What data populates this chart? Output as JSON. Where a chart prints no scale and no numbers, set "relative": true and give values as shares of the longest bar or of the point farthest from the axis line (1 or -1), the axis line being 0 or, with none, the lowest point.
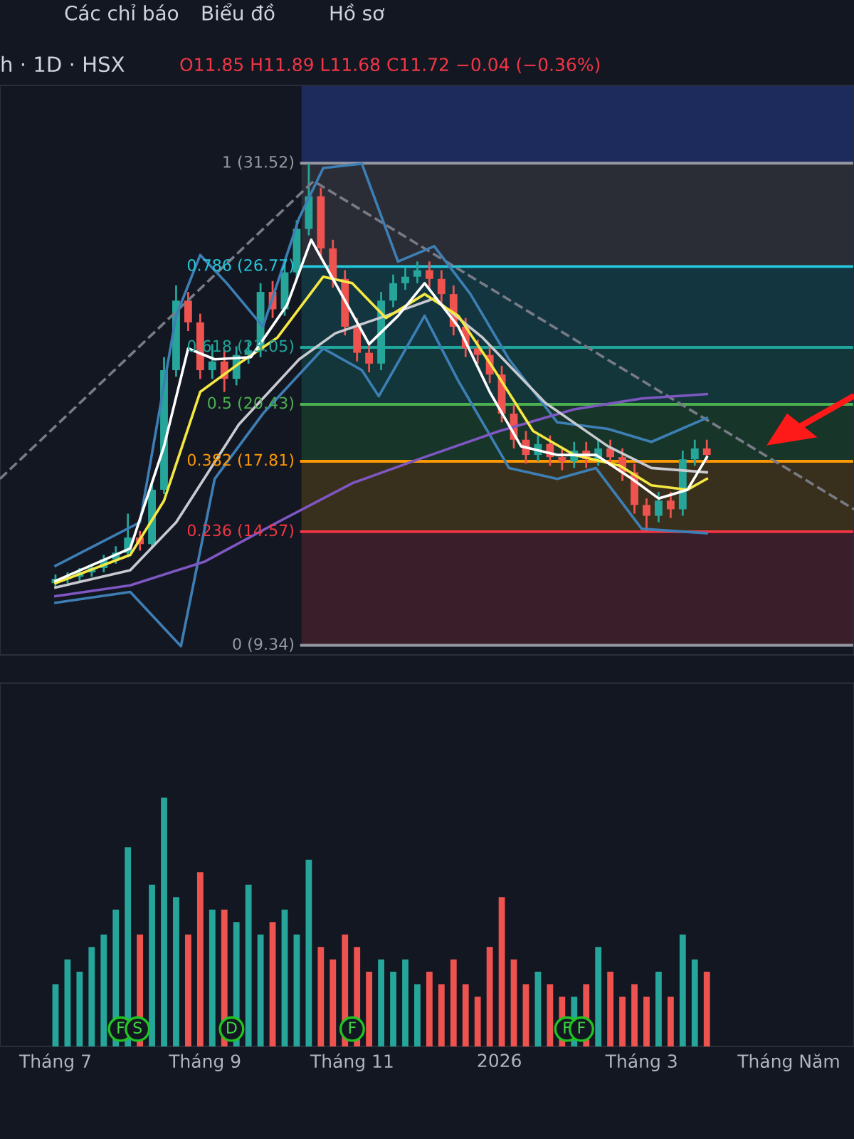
{
  "chart_data": [
    {
      "type": "candlestick",
      "tick_labels": false,
      "annotations": [
        "Các chỉ báo",
        "Biểu đồ",
        "Hồ sơ",
        "h · 1D · HSX",
        "O11.85 H11.89 L11.68 C11.72 −0.04 (−0.36%)"
      ],
      "xlim": [
        "2025-06-08",
        "2026-05-28"
      ],
      "ylim": [
        8.9,
        35.1
      ],
      "x": [
        "2025-07-01",
        "2025-07-06",
        "2025-07-11",
        "2025-07-16",
        "2025-07-21",
        "2025-07-26",
        "2025-07-31",
        "2025-08-05",
        "2025-08-10",
        "2025-08-15",
        "2025-08-20",
        "2025-08-25",
        "2025-08-30",
        "2025-09-04",
        "2025-09-09",
        "2025-09-14",
        "2025-09-19",
        "2025-09-24",
        "2025-09-29",
        "2025-10-04",
        "2025-10-09",
        "2025-10-14",
        "2025-10-19",
        "2025-10-24",
        "2025-10-29",
        "2025-11-03",
        "2025-11-08",
        "2025-11-13",
        "2025-11-18",
        "2025-11-23",
        "2025-11-28",
        "2025-12-03",
        "2025-12-08",
        "2025-12-13",
        "2025-12-18",
        "2025-12-23",
        "2025-12-28",
        "2026-01-02",
        "2026-01-07",
        "2026-01-12",
        "2026-01-17",
        "2026-01-22",
        "2026-01-27",
        "2026-02-01",
        "2026-02-06",
        "2026-02-11",
        "2026-02-16",
        "2026-02-21",
        "2026-02-26",
        "2026-03-03",
        "2026-03-08",
        "2026-03-13",
        "2026-03-18",
        "2026-03-23",
        "2026-03-28"
      ],
      "ohlc": [
        [
          12.2,
          12.6,
          12.0,
          12.4
        ],
        [
          12.4,
          12.7,
          12.2,
          12.5
        ],
        [
          12.5,
          12.9,
          12.3,
          12.7
        ],
        [
          12.7,
          13.1,
          12.5,
          12.9
        ],
        [
          12.9,
          13.5,
          12.7,
          13.3
        ],
        [
          13.3,
          13.9,
          13.1,
          13.6
        ],
        [
          13.6,
          15.4,
          13.4,
          14.3
        ],
        [
          14.3,
          14.6,
          13.7,
          14.0
        ],
        [
          14.0,
          16.9,
          13.8,
          16.5
        ],
        [
          16.5,
          22.6,
          16.3,
          22.0
        ],
        [
          22.0,
          25.9,
          21.7,
          25.2
        ],
        [
          25.2,
          25.6,
          23.8,
          24.2
        ],
        [
          24.2,
          24.6,
          21.6,
          22.0
        ],
        [
          22.0,
          23.2,
          21.6,
          22.4
        ],
        [
          22.4,
          22.9,
          21.0,
          21.6
        ],
        [
          21.6,
          23.1,
          21.3,
          22.7
        ],
        [
          22.7,
          23.3,
          22.3,
          22.9
        ],
        [
          22.9,
          26.0,
          22.6,
          25.6
        ],
        [
          25.6,
          26.1,
          24.4,
          24.8
        ],
        [
          24.8,
          26.9,
          24.5,
          26.5
        ],
        [
          26.5,
          28.9,
          26.2,
          28.5
        ],
        [
          28.5,
          31.5,
          28.2,
          30.0
        ],
        [
          30.0,
          30.4,
          27.2,
          27.6
        ],
        [
          27.6,
          28.0,
          25.8,
          26.2
        ],
        [
          26.2,
          26.6,
          23.6,
          24.0
        ],
        [
          24.0,
          24.4,
          22.4,
          22.8
        ],
        [
          22.8,
          23.2,
          21.9,
          22.3
        ],
        [
          22.3,
          25.6,
          22.0,
          25.2
        ],
        [
          25.2,
          26.4,
          24.9,
          26.0
        ],
        [
          26.0,
          26.7,
          25.7,
          26.3
        ],
        [
          26.3,
          27.0,
          26.0,
          26.6
        ],
        [
          26.6,
          27.0,
          25.8,
          26.2
        ],
        [
          26.2,
          26.6,
          25.1,
          25.5
        ],
        [
          25.5,
          25.9,
          23.6,
          24.0
        ],
        [
          24.0,
          24.4,
          22.6,
          23.0
        ],
        [
          23.0,
          23.4,
          22.3,
          22.7
        ],
        [
          22.7,
          23.1,
          21.4,
          21.8
        ],
        [
          21.8,
          22.2,
          19.6,
          20.0
        ],
        [
          20.0,
          20.4,
          18.4,
          18.8
        ],
        [
          18.8,
          19.2,
          17.7,
          18.1
        ],
        [
          18.1,
          19.0,
          17.8,
          18.6
        ],
        [
          18.6,
          19.0,
          17.6,
          18.0
        ],
        [
          18.0,
          18.4,
          17.4,
          17.8
        ],
        [
          17.8,
          18.7,
          17.5,
          18.3
        ],
        [
          18.3,
          18.7,
          17.5,
          17.9
        ],
        [
          17.9,
          18.8,
          17.6,
          18.4
        ],
        [
          18.4,
          18.8,
          17.6,
          18.0
        ],
        [
          18.0,
          18.4,
          16.9,
          17.3
        ],
        [
          17.3,
          17.7,
          15.4,
          15.8
        ],
        [
          15.8,
          16.1,
          14.6,
          15.3
        ],
        [
          15.3,
          16.4,
          15.0,
          16.0
        ],
        [
          16.0,
          16.4,
          15.2,
          15.6
        ],
        [
          15.6,
          18.3,
          15.3,
          17.9
        ],
        [
          17.9,
          18.8,
          17.6,
          18.4
        ],
        [
          18.4,
          18.8,
          17.8,
          18.1
        ]
      ],
      "colors": [
        "#26a69a",
        "#26a69a",
        "#26a69a",
        "#26a69a",
        "#26a69a",
        "#26a69a",
        "#26a69a",
        "#ef5350",
        "#26a69a",
        "#26a69a",
        "#26a69a",
        "#ef5350",
        "#ef5350",
        "#26a69a",
        "#ef5350",
        "#26a69a",
        "#26a69a",
        "#26a69a",
        "#ef5350",
        "#26a69a",
        "#26a69a",
        "#26a69a",
        "#ef5350",
        "#ef5350",
        "#ef5350",
        "#ef5350",
        "#ef5350",
        "#26a69a",
        "#26a69a",
        "#26a69a",
        "#26a69a",
        "#ef5350",
        "#ef5350",
        "#ef5350",
        "#ef5350",
        "#ef5350",
        "#ef5350",
        "#ef5350",
        "#ef5350",
        "#ef5350",
        "#26a69a",
        "#ef5350",
        "#ef5350",
        "#26a69a",
        "#ef5350",
        "#26a69a",
        "#ef5350",
        "#ef5350",
        "#ef5350",
        "#ef5350",
        "#26a69a",
        "#ef5350",
        "#26a69a",
        "#26a69a",
        "#ef5350"
      ],
      "series": [
        {
          "type": "line",
          "color": "#787b86",
          "line_style": "dashed",
          "x": [
            "2025-06-08",
            "2025-10-16",
            "2026-05-28"
          ],
          "values": [
            17.0,
            30.7,
            15.6
          ]
        },
        {
          "type": "line",
          "color": "#3d7fb5",
          "line_style": "solid",
          "x": [
            "2025-07-01",
            "2025-08-05",
            "2025-08-20",
            "2025-08-30",
            "2025-09-10",
            "2025-09-25",
            "2025-10-10",
            "2025-10-20",
            "2025-11-05",
            "2025-11-20",
            "2025-12-05",
            "2025-12-20",
            "2026-01-05",
            "2026-01-25",
            "2026-02-15",
            "2026-03-05",
            "2026-03-28"
          ],
          "values": [
            13.0,
            15.0,
            24.5,
            27.3,
            26.0,
            24.0,
            29.0,
            31.3,
            31.5,
            27.0,
            27.7,
            25.5,
            22.5,
            19.6,
            19.3,
            18.7,
            19.8
          ]
        },
        {
          "type": "line",
          "color": "#3d7fb5",
          "line_style": "solid",
          "x": [
            "2025-07-01",
            "2025-08-01",
            "2025-08-22",
            "2025-09-05",
            "2025-09-25",
            "2025-10-20",
            "2025-11-05",
            "2025-11-12",
            "2025-12-01",
            "2025-12-15",
            "2026-01-05",
            "2026-01-25",
            "2026-02-10",
            "2026-03-01",
            "2026-03-28"
          ],
          "values": [
            11.3,
            11.8,
            9.3,
            17.0,
            20.0,
            23.0,
            22.0,
            20.8,
            24.5,
            21.5,
            17.5,
            17.0,
            17.5,
            14.7,
            14.5
          ]
        },
        {
          "type": "line",
          "color": "#7e57c2",
          "line_style": "solid",
          "x": [
            "2025-07-01",
            "2025-08-01",
            "2025-09-01",
            "2025-10-01",
            "2025-11-01",
            "2025-12-01",
            "2026-01-01",
            "2026-02-01",
            "2026-03-01",
            "2026-03-28"
          ],
          "values": [
            11.6,
            12.1,
            13.2,
            15.0,
            16.8,
            18.0,
            19.2,
            20.2,
            20.7,
            20.9
          ]
        },
        {
          "type": "line",
          "color": "#c8cad0",
          "line_style": "solid",
          "x": [
            "2025-07-01",
            "2025-08-01",
            "2025-08-20",
            "2025-09-15",
            "2025-10-10",
            "2025-10-25",
            "2025-11-15",
            "2025-12-05",
            "2025-12-25",
            "2026-01-20",
            "2026-02-15",
            "2026-03-05",
            "2026-03-28"
          ],
          "values": [
            12.0,
            12.8,
            15.0,
            19.5,
            22.5,
            23.7,
            24.5,
            25.3,
            23.5,
            20.5,
            18.5,
            17.5,
            17.3
          ]
        },
        {
          "type": "line",
          "color": "#f5e842",
          "line_style": "solid",
          "x": [
            "2025-07-01",
            "2025-08-01",
            "2025-08-15",
            "2025-08-30",
            "2025-09-15",
            "2025-10-01",
            "2025-10-20",
            "2025-11-01",
            "2025-11-15",
            "2025-12-01",
            "2025-12-15",
            "2025-12-30",
            "2026-01-15",
            "2026-02-01",
            "2026-02-20",
            "2026-03-05",
            "2026-03-20",
            "2026-03-28"
          ],
          "values": [
            12.2,
            13.5,
            16.0,
            21.0,
            22.3,
            23.5,
            26.3,
            26.0,
            24.4,
            25.5,
            24.5,
            22.0,
            19.2,
            18.1,
            17.6,
            16.7,
            16.5,
            17.0
          ]
        },
        {
          "type": "line",
          "color": "#ffffff",
          "line_style": "solid",
          "x": [
            "2025-07-01",
            "2025-08-01",
            "2025-08-15",
            "2025-08-25",
            "2025-09-05",
            "2025-09-20",
            "2025-10-05",
            "2025-10-15",
            "2025-10-25",
            "2025-11-08",
            "2025-11-20",
            "2025-12-01",
            "2025-12-15",
            "2025-12-28",
            "2026-01-10",
            "2026-01-25",
            "2026-02-10",
            "2026-02-25",
            "2026-03-08",
            "2026-03-20",
            "2026-03-28"
          ],
          "values": [
            12.3,
            13.8,
            18.5,
            23.0,
            22.5,
            22.6,
            25.0,
            28.0,
            26.0,
            23.2,
            24.5,
            26.0,
            24.0,
            21.0,
            18.5,
            18.1,
            18.1,
            17.0,
            16.1,
            16.5,
            18.0
          ]
        }
      ],
      "bands": [
        {
          "axis": "y",
          "from": 31.52,
          "to": 35.1,
          "color": "#1c2a5c"
        },
        {
          "axis": "y",
          "from": 26.77,
          "to": 31.52,
          "color": "#2a2d35"
        },
        {
          "axis": "y",
          "from": 23.05,
          "to": 26.77,
          "color": "#123540"
        },
        {
          "axis": "y",
          "from": 20.43,
          "to": 23.05,
          "color": "#12363a"
        },
        {
          "axis": "y",
          "from": 17.81,
          "to": 20.43,
          "color": "#18352a"
        },
        {
          "axis": "y",
          "from": 14.57,
          "to": 17.81,
          "color": "#38301c"
        },
        {
          "axis": "y",
          "from": 9.34,
          "to": 14.57,
          "color": "#3a1f2b"
        }
      ],
      "ref_lines": [
        {
          "axis": "y",
          "value": 31.52,
          "label": "1 (31.52)",
          "color": "#9598a1"
        },
        {
          "axis": "y",
          "value": 26.77,
          "label": "0.786 (26.77)",
          "color": "#26c6da"
        },
        {
          "axis": "y",
          "value": 23.05,
          "label": "0.618 (23.05)",
          "color": "#1fa59a"
        },
        {
          "axis": "y",
          "value": 20.43,
          "label": "0.5 (20.43)",
          "color": "#4caf50"
        },
        {
          "axis": "y",
          "value": 17.81,
          "label": "0.382 (17.81)",
          "color": "#ff9800"
        },
        {
          "axis": "y",
          "value": 14.57,
          "label": "0.236 (14.57)",
          "color": "#f23645"
        },
        {
          "axis": "y",
          "value": 9.34,
          "label": "0 (9.34)",
          "color": "#9598a1"
        }
      ]
    },
    {
      "type": "bar",
      "relative": true,
      "tick_labels": "x",
      "xlim": [
        "2025-06-08",
        "2026-05-28"
      ],
      "xticks": [
        {
          "value": "2025-07-01",
          "label": "Tháng 7"
        },
        {
          "value": "2025-09-01",
          "label": "Tháng 9"
        },
        {
          "value": "2025-11-01",
          "label": "Tháng 11"
        },
        {
          "value": "2026-01-01",
          "label": "2026"
        },
        {
          "value": "2026-03-01",
          "label": "Tháng 3"
        },
        {
          "value": "2026-05-01",
          "label": "Tháng Năm"
        }
      ],
      "x": [
        "2025-07-01",
        "2025-07-06",
        "2025-07-11",
        "2025-07-16",
        "2025-07-21",
        "2025-07-26",
        "2025-07-31",
        "2025-08-05",
        "2025-08-10",
        "2025-08-15",
        "2025-08-20",
        "2025-08-25",
        "2025-08-30",
        "2025-09-04",
        "2025-09-09",
        "2025-09-14",
        "2025-09-19",
        "2025-09-24",
        "2025-09-29",
        "2025-10-04",
        "2025-10-09",
        "2025-10-14",
        "2025-10-19",
        "2025-10-24",
        "2025-10-29",
        "2025-11-03",
        "2025-11-08",
        "2025-11-13",
        "2025-11-18",
        "2025-11-23",
        "2025-11-28",
        "2025-12-03",
        "2025-12-08",
        "2025-12-13",
        "2025-12-18",
        "2025-12-23",
        "2025-12-28",
        "2026-01-02",
        "2026-01-07",
        "2026-01-12",
        "2026-01-17",
        "2026-01-22",
        "2026-01-27",
        "2026-02-01",
        "2026-02-06",
        "2026-02-11",
        "2026-02-16",
        "2026-02-21",
        "2026-02-26",
        "2026-03-03",
        "2026-03-08",
        "2026-03-13",
        "2026-03-18",
        "2026-03-23",
        "2026-03-28"
      ],
      "values": [
        0.25,
        0.35,
        0.3,
        0.4,
        0.45,
        0.55,
        0.8,
        0.45,
        0.65,
        1.0,
        0.6,
        0.45,
        0.7,
        0.55,
        0.55,
        0.5,
        0.65,
        0.45,
        0.5,
        0.55,
        0.45,
        0.75,
        0.4,
        0.35,
        0.45,
        0.4,
        0.3,
        0.35,
        0.3,
        0.35,
        0.25,
        0.3,
        0.25,
        0.35,
        0.25,
        0.2,
        0.4,
        0.6,
        0.35,
        0.25,
        0.3,
        0.25,
        0.2,
        0.2,
        0.25,
        0.4,
        0.3,
        0.2,
        0.25,
        0.2,
        0.3,
        0.2,
        0.45,
        0.35,
        0.3
      ],
      "colors": [
        "#26a69a",
        "#26a69a",
        "#26a69a",
        "#26a69a",
        "#26a69a",
        "#26a69a",
        "#26a69a",
        "#ef5350",
        "#26a69a",
        "#26a69a",
        "#26a69a",
        "#ef5350",
        "#ef5350",
        "#26a69a",
        "#ef5350",
        "#26a69a",
        "#26a69a",
        "#26a69a",
        "#ef5350",
        "#26a69a",
        "#26a69a",
        "#26a69a",
        "#ef5350",
        "#ef5350",
        "#ef5350",
        "#ef5350",
        "#ef5350",
        "#26a69a",
        "#26a69a",
        "#26a69a",
        "#26a69a",
        "#ef5350",
        "#ef5350",
        "#ef5350",
        "#ef5350",
        "#ef5350",
        "#ef5350",
        "#ef5350",
        "#ef5350",
        "#ef5350",
        "#26a69a",
        "#ef5350",
        "#ef5350",
        "#26a69a",
        "#ef5350",
        "#26a69a",
        "#ef5350",
        "#ef5350",
        "#ef5350",
        "#ef5350",
        "#26a69a",
        "#ef5350",
        "#26a69a",
        "#26a69a",
        "#ef5350"
      ],
      "annotations": [
        {
          "text": "F",
          "x": "2025-07-28",
          "y": 0.07
        },
        {
          "text": "S",
          "x": "2025-08-04",
          "y": 0.07
        },
        {
          "text": "D",
          "x": "2025-09-12",
          "y": 0.07
        },
        {
          "text": "F",
          "x": "2025-11-01",
          "y": 0.07
        },
        {
          "text": "F",
          "x": "2026-01-29",
          "y": 0.07
        },
        {
          "text": "F",
          "x": "2026-02-04",
          "y": 0.07
        }
      ]
    }
  ]
}
